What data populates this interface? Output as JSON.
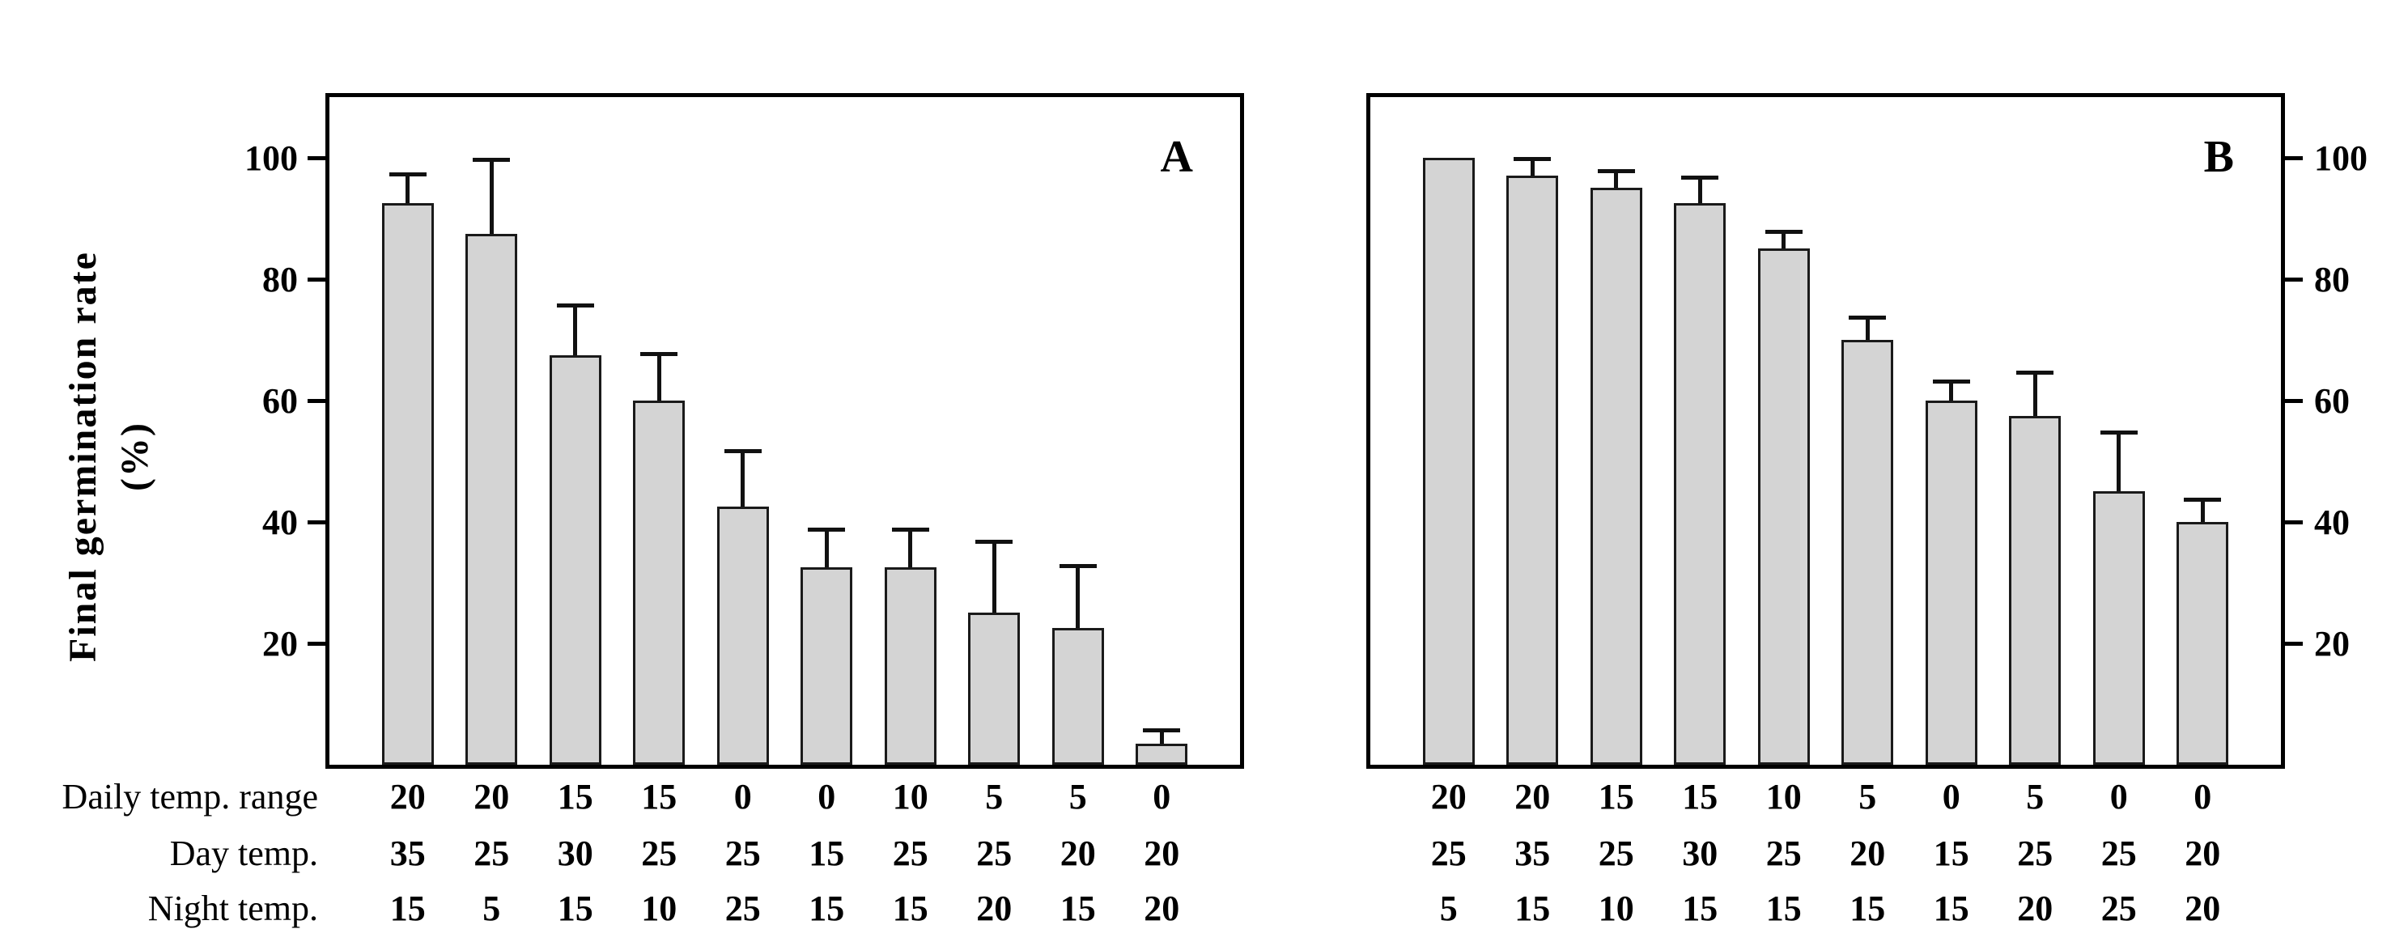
{
  "figure": {
    "y_axis": {
      "title_line1": "Final germination rate",
      "title_line2": "(%)"
    },
    "row_labels": [
      "Daily temp. range",
      "Day temp.",
      "Night temp."
    ],
    "panels": [
      {
        "label": "A"
      },
      {
        "label": "B"
      }
    ],
    "colors": {
      "bar_fill": "#d4d4d4",
      "bar_border": "#1a1a1a",
      "axis": "#000000",
      "background": "#ffffff"
    }
  },
  "chart_data": [
    {
      "type": "bar",
      "panel": "A",
      "title": "",
      "xlabel": "",
      "ylabel": "Final germination rate (%)",
      "ylim": [
        0,
        110
      ],
      "yticks": [
        20,
        40,
        60,
        80,
        100
      ],
      "grid": false,
      "legend": "none",
      "temp_rows": {
        "daily_temp_range": [
          20,
          20,
          15,
          15,
          0,
          0,
          10,
          5,
          5,
          0
        ],
        "day_temp": [
          35,
          25,
          30,
          25,
          25,
          15,
          25,
          25,
          20,
          20
        ],
        "night_temp": [
          15,
          5,
          15,
          10,
          25,
          15,
          15,
          20,
          15,
          20
        ]
      },
      "values": [
        92.5,
        87.5,
        67.5,
        60,
        42.5,
        32.5,
        32.5,
        25,
        22.5,
        3.5
      ],
      "errors_plus": [
        5,
        12.5,
        8.5,
        8,
        9.5,
        6.5,
        6.5,
        12,
        10.5,
        2.5
      ]
    },
    {
      "type": "bar",
      "panel": "B",
      "title": "",
      "xlabel": "",
      "ylabel": "Final germination rate (%)",
      "ylim": [
        0,
        110
      ],
      "yticks": [
        20,
        40,
        60,
        80,
        100
      ],
      "grid": false,
      "legend": "none",
      "temp_rows": {
        "daily_temp_range": [
          20,
          20,
          15,
          15,
          10,
          5,
          0,
          5,
          0,
          0
        ],
        "day_temp": [
          25,
          35,
          25,
          30,
          25,
          20,
          15,
          25,
          25,
          20
        ],
        "night_temp": [
          5,
          15,
          10,
          15,
          15,
          15,
          15,
          20,
          25,
          20
        ]
      },
      "values": [
        100,
        97,
        95,
        92.5,
        85,
        70,
        60,
        57.5,
        45,
        40
      ],
      "errors_plus": [
        0,
        3,
        3,
        4.5,
        3,
        4,
        3.5,
        7.5,
        10,
        4
      ]
    }
  ]
}
